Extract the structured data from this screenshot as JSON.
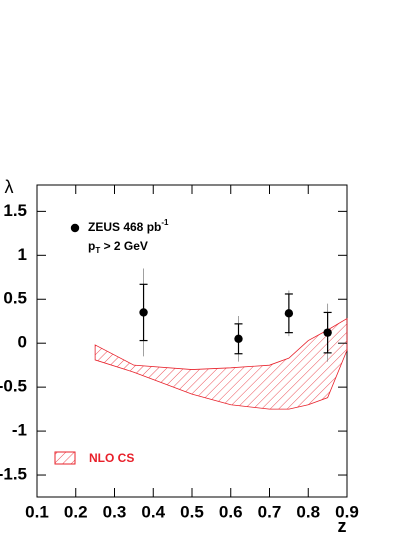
{
  "chart_data": {
    "type": "errorbar",
    "x_label": "z",
    "y_label": "λ",
    "xlim": [
      0.1,
      0.9
    ],
    "ylim": [
      -1.75,
      1.8
    ],
    "xticks": [
      0.1,
      0.2,
      0.3,
      0.4,
      0.5,
      0.6,
      0.7,
      0.8,
      0.9
    ],
    "yticks": [
      -1.5,
      -1,
      -0.5,
      0,
      0.5,
      1,
      1.5
    ],
    "series": [
      {
        "name": "ZEUS 468 pb",
        "name_sup": "-1",
        "color": "#000000",
        "x": [
          0.375,
          0.62,
          0.75,
          0.85
        ],
        "values": [
          0.35,
          0.05,
          0.34,
          0.12
        ],
        "err_stat": [
          0.32,
          0.17,
          0.22,
          0.23
        ],
        "err_total": [
          0.5,
          0.26,
          0.26,
          0.33
        ]
      },
      {
        "name": "NLO CS",
        "color": "#e8202a",
        "x": [
          0.25,
          0.35,
          0.5,
          0.6,
          0.7,
          0.75,
          0.8,
          0.85,
          0.9
        ],
        "upper": [
          -0.02,
          -0.25,
          -0.3,
          -0.28,
          -0.25,
          -0.17,
          0.03,
          0.15,
          0.28
        ],
        "lower": [
          -0.19,
          -0.33,
          -0.58,
          -0.7,
          -0.75,
          -0.75,
          -0.7,
          -0.62,
          -0.08
        ]
      }
    ],
    "annotation": {
      "main": "p",
      "sub": "T",
      "rest": " > 2 GeV"
    }
  }
}
